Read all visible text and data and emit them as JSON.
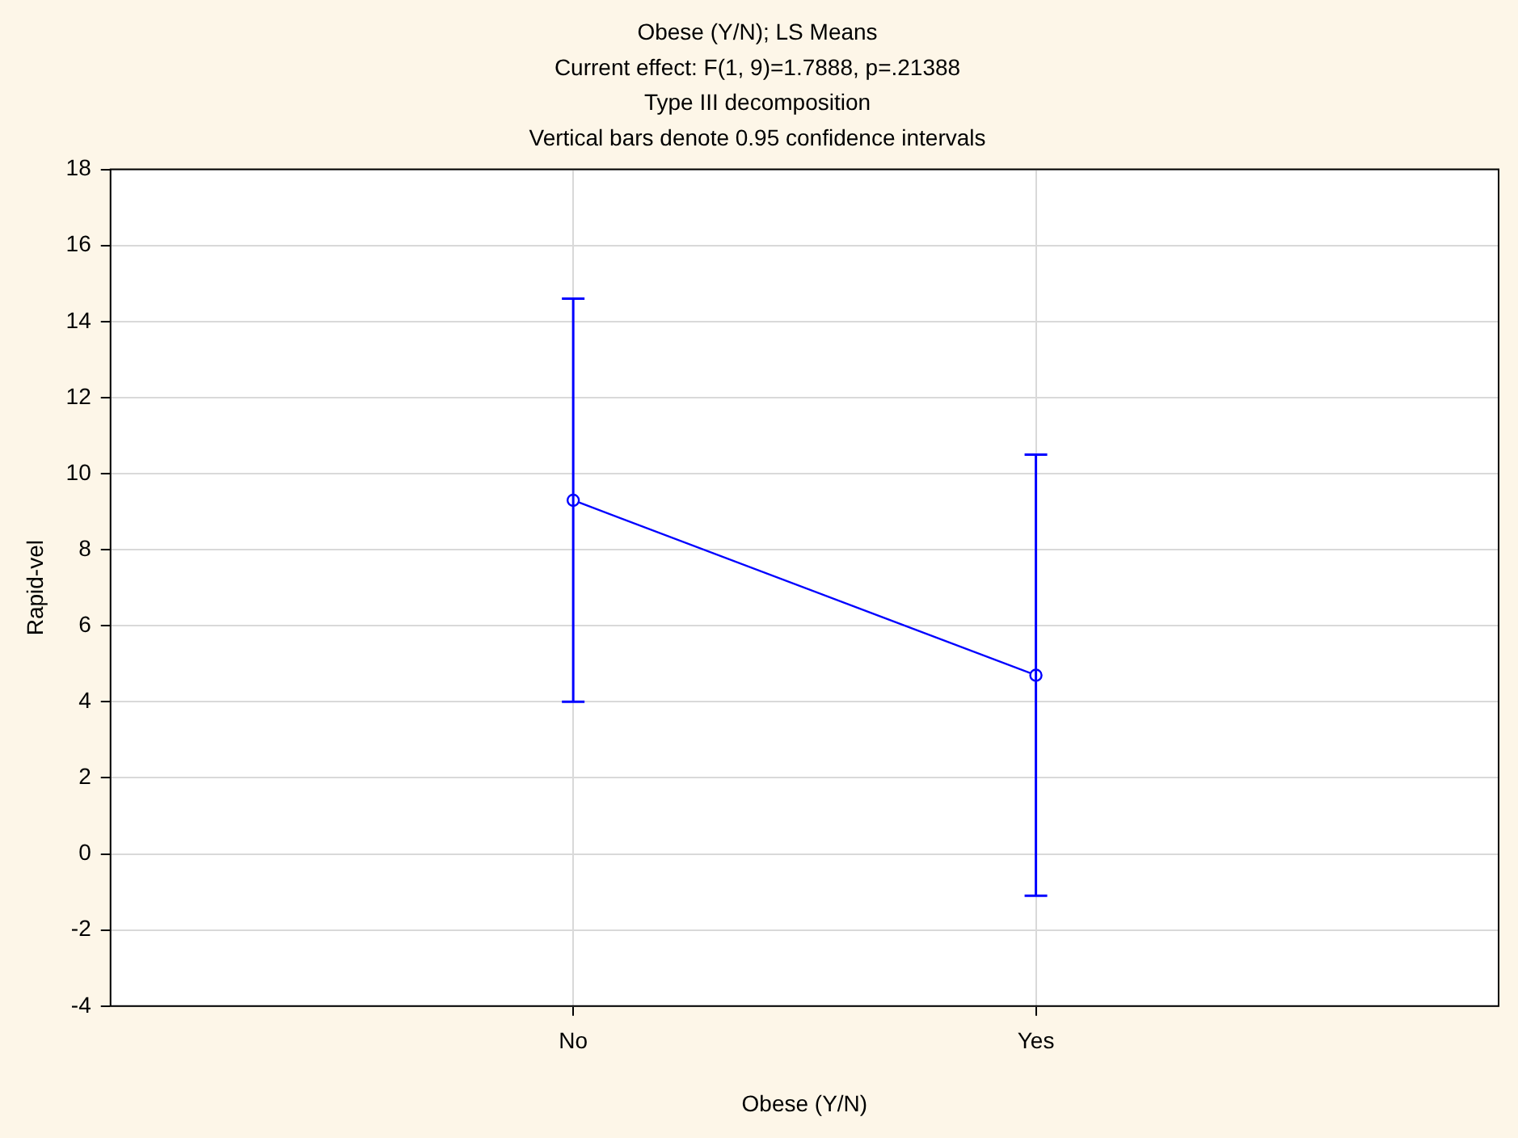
{
  "chart_data": {
    "type": "line",
    "title": "Obese (Y/N); LS Means",
    "subtitle": "Current effect: F(1, 9)=1.7888, p=.21388",
    "annotations": [
      "Type III decomposition",
      "Vertical bars denote 0.95 confidence intervals"
    ],
    "xlabel": "Obese (Y/N)",
    "ylabel": "Rapid-vel",
    "categories": [
      "No",
      "Yes"
    ],
    "series": [
      {
        "color": "#0000ff",
        "values": [
          9.3,
          4.7
        ],
        "errors": [
          [
            4.0,
            14.6
          ],
          [
            -1.1,
            10.5
          ]
        ]
      }
    ],
    "ylim": [
      -4,
      18
    ],
    "yticks": [
      -4,
      -2,
      0,
      2,
      4,
      6,
      8,
      10,
      12,
      14,
      16,
      18
    ],
    "grid": true,
    "legend": false,
    "marker": "circle",
    "line_style": "solid"
  }
}
